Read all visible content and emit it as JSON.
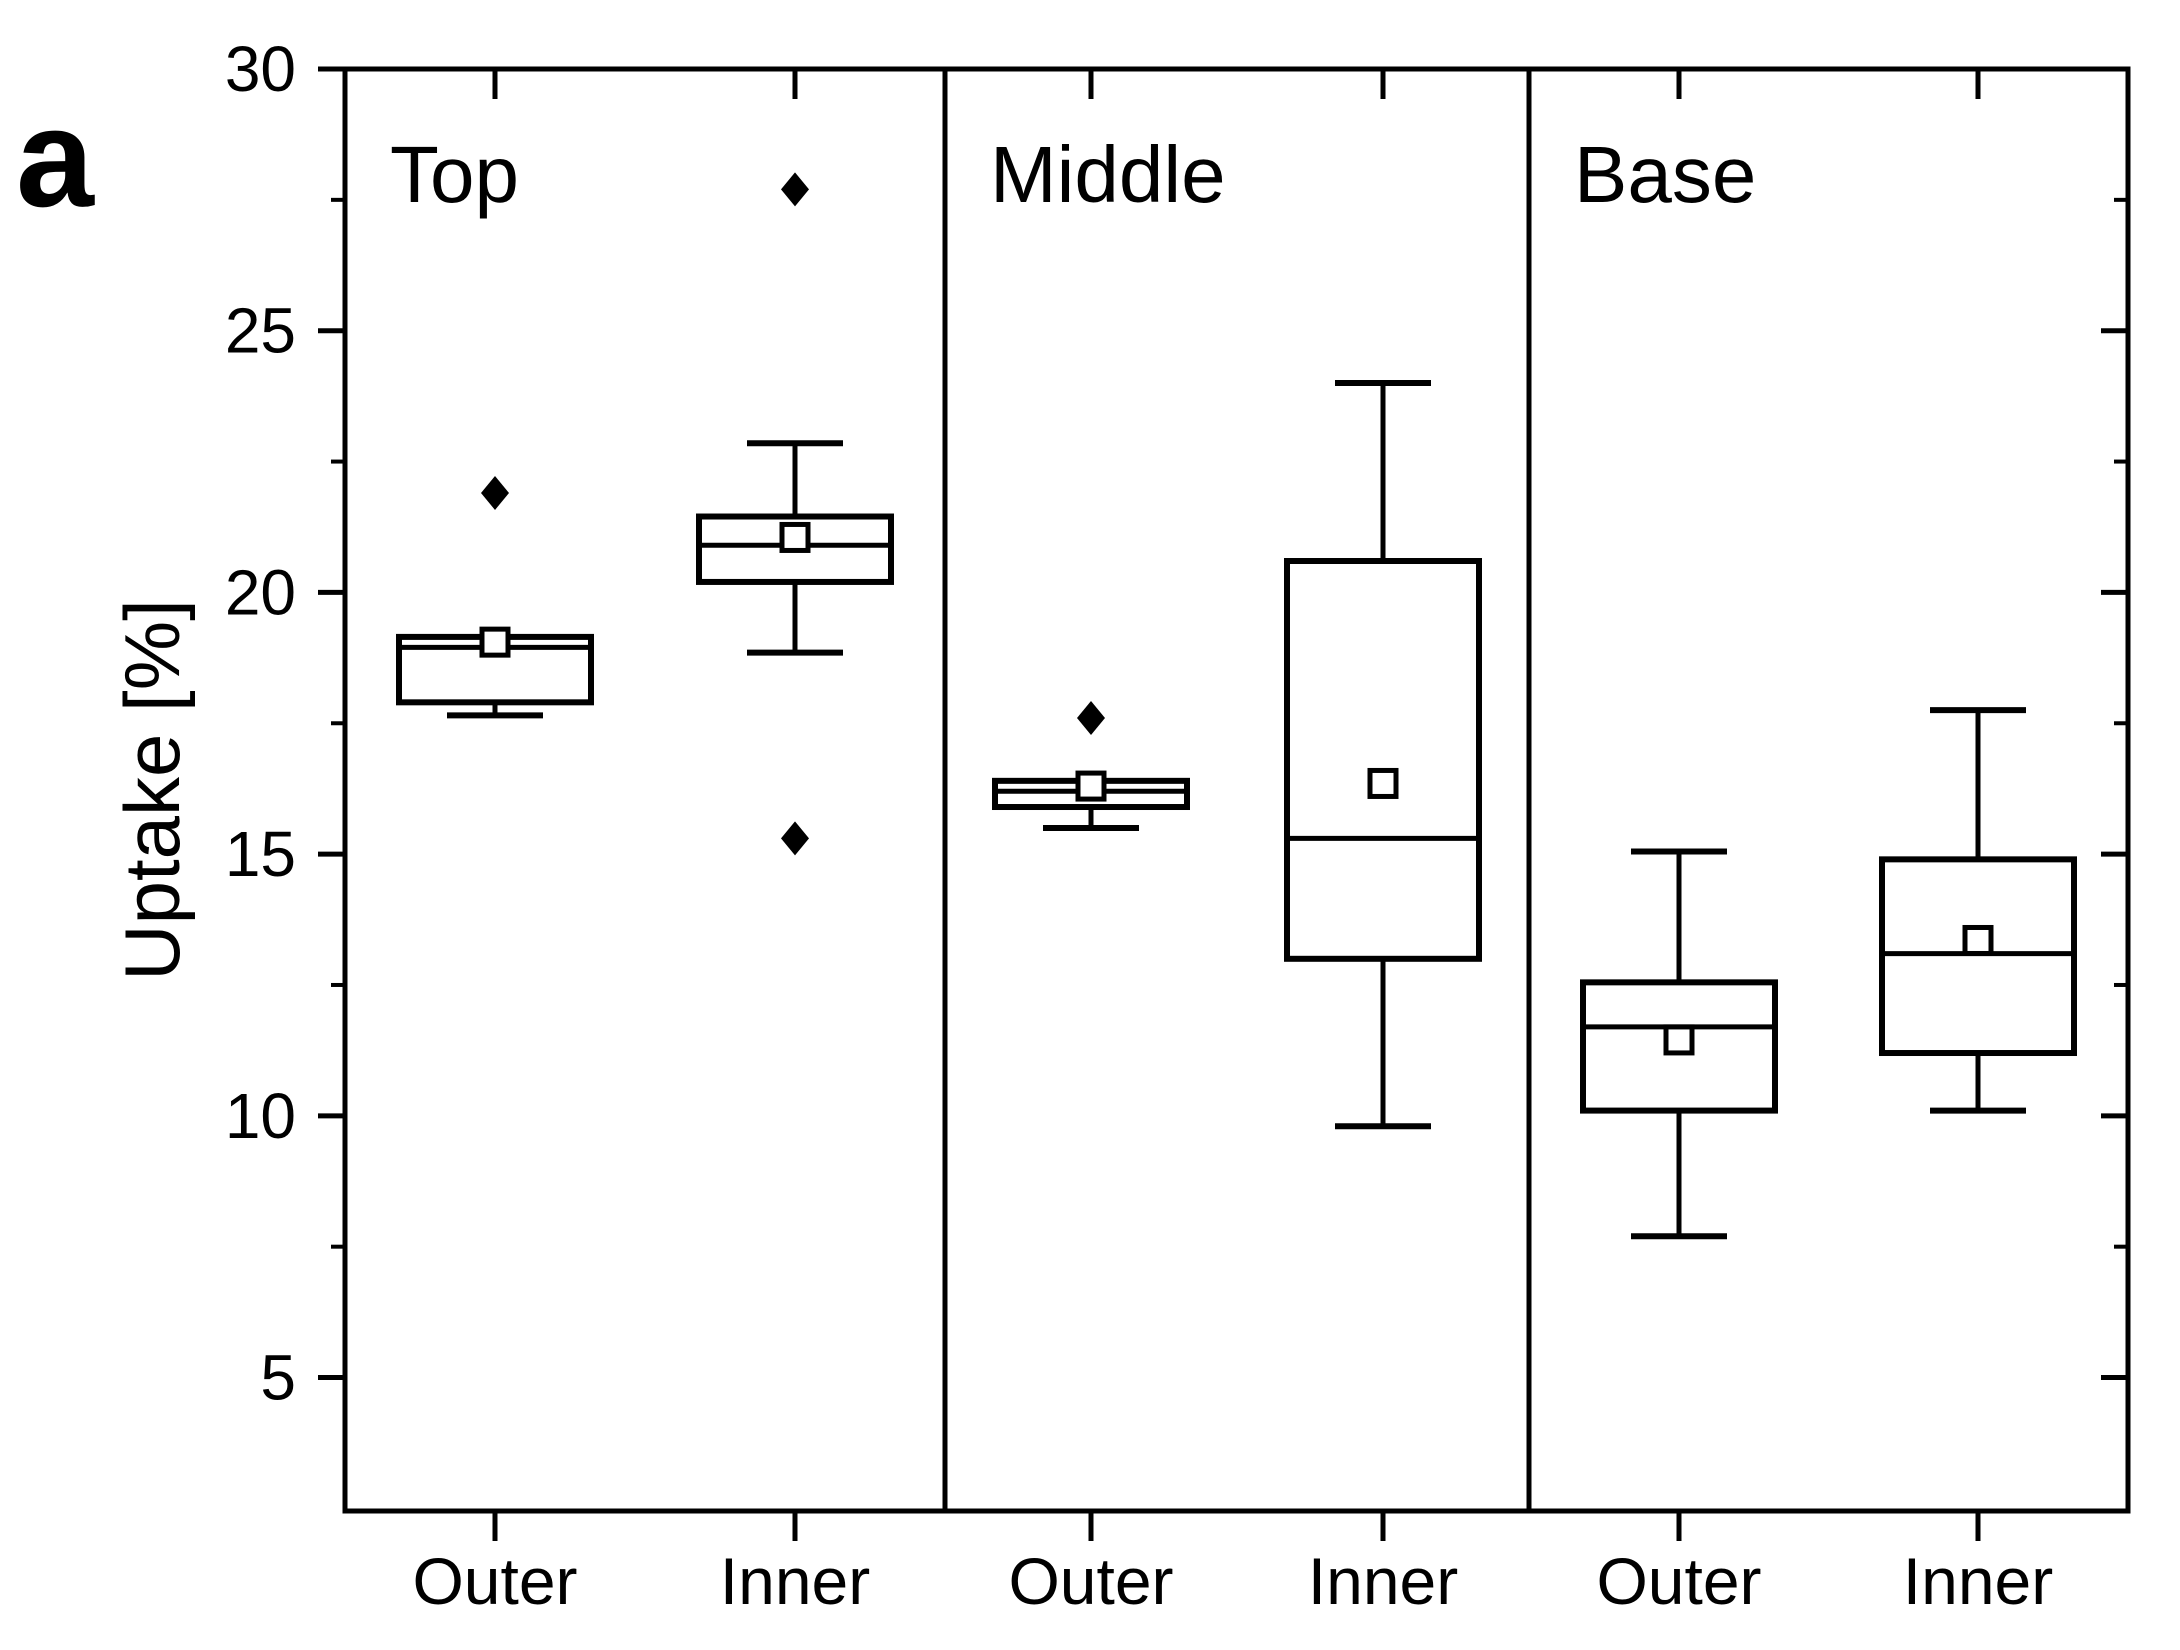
{
  "figure_label": "a",
  "chart_data": {
    "type": "boxplot",
    "title": "",
    "xlabel": "",
    "ylabel": "Uptake [%]",
    "ylim": [
      2.45,
      30
    ],
    "grid": false,
    "legend_position": "none",
    "yticks_major": [
      30,
      25,
      20,
      15,
      10,
      5
    ],
    "yticks_minor": [
      27.5,
      22.5,
      17.5,
      12.5,
      7.5
    ],
    "marker_styles": {
      "mean": "open-square",
      "outlier": "filled-diamond"
    },
    "panels": [
      {
        "label": "Top",
        "groups": [
          {
            "label": "Outer",
            "whisker_low": 17.65,
            "q1": 17.9,
            "median": 18.95,
            "q3": 19.15,
            "whisker_high": 19.15,
            "mean": 19.05,
            "outliers": [
              21.9
            ]
          },
          {
            "label": "Inner",
            "whisker_low": 18.85,
            "q1": 20.2,
            "median": 20.9,
            "q3": 21.45,
            "whisker_high": 22.85,
            "mean": 21.05,
            "outliers": [
              27.7,
              15.3
            ]
          }
        ]
      },
      {
        "label": "Middle",
        "groups": [
          {
            "label": "Outer",
            "whisker_low": 15.5,
            "q1": 15.9,
            "median": 16.2,
            "q3": 16.4,
            "whisker_high": 16.4,
            "mean": 16.3,
            "outliers": [
              17.6
            ]
          },
          {
            "label": "Inner",
            "whisker_low": 9.8,
            "q1": 13.0,
            "median": 15.3,
            "q3": 20.6,
            "whisker_high": 24.0,
            "mean": 16.35,
            "outliers": []
          }
        ]
      },
      {
        "label": "Base",
        "groups": [
          {
            "label": "Outer",
            "whisker_low": 7.7,
            "q1": 10.1,
            "median": 11.7,
            "q3": 12.55,
            "whisker_high": 15.05,
            "mean": 11.45,
            "outliers": []
          },
          {
            "label": "Inner",
            "whisker_low": 10.1,
            "q1": 11.2,
            "median": 13.1,
            "q3": 14.9,
            "whisker_high": 17.75,
            "mean": 13.35,
            "outliers": []
          }
        ]
      }
    ]
  }
}
